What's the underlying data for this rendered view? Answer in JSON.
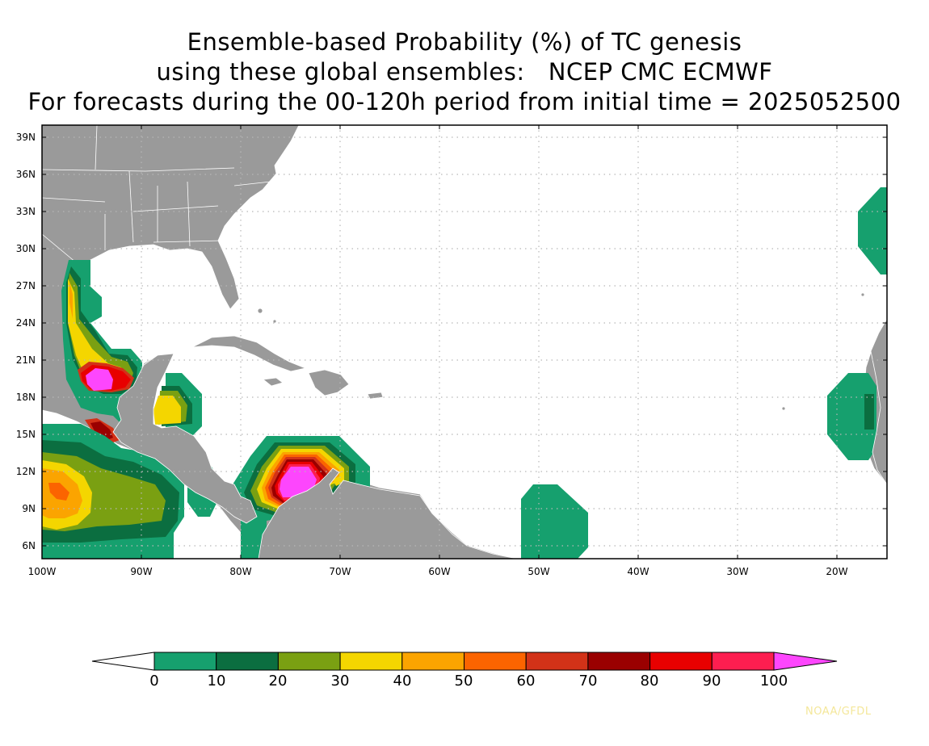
{
  "title": {
    "line1": "Ensemble-based Probability (%) of TC genesis",
    "line2": "using these global ensembles:   NCEP CMC ECMWF",
    "line3": "For forecasts during the 00-120h period from initial time = 2025052500"
  },
  "map": {
    "lon_range": [
      -100,
      -15
    ],
    "lat_range": [
      5,
      40
    ],
    "lat_ticks": [
      "39N",
      "36N",
      "33N",
      "30N",
      "27N",
      "24N",
      "21N",
      "18N",
      "15N",
      "12N",
      "9N",
      "6N"
    ],
    "lon_ticks": [
      "100W",
      "90W",
      "80W",
      "70W",
      "60W",
      "50W",
      "40W",
      "30W",
      "20W"
    ],
    "land_color": "#9a9a9a",
    "border_color": "#ffffff",
    "grid": "dotted"
  },
  "colorbar": {
    "labels": [
      "0",
      "10",
      "20",
      "30",
      "40",
      "50",
      "60",
      "70",
      "80",
      "90",
      "100"
    ],
    "colors": [
      "#16a06e",
      "#0b6e40",
      "#7aa012",
      "#f4d600",
      "#fba400",
      "#fb6400",
      "#d23218",
      "#9a0000",
      "#e80000",
      "#fd1e50",
      "#fd46fd"
    ],
    "under_color": "#ffffff"
  },
  "credit": "NOAA/GFDL"
}
